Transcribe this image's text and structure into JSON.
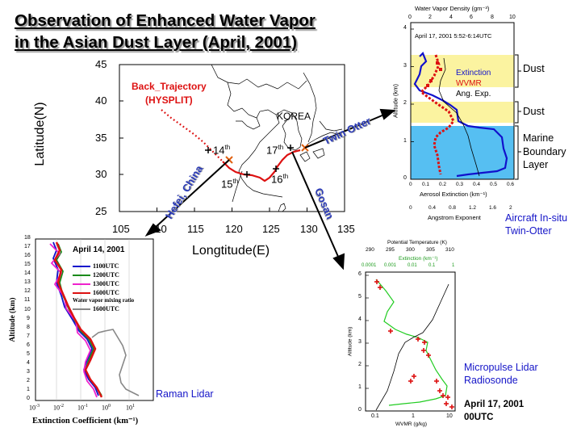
{
  "slide": {
    "title_line1": "Observation of Enhanced Water Vapor",
    "title_line2": "in the Asian Dust Layer (April, 2001)"
  },
  "map": {
    "xlabel": "Longtitude(E)",
    "ylabel": "Latitude(N)",
    "xticks": [
      "105",
      "110",
      "115",
      "120",
      "125",
      "130",
      "135"
    ],
    "yticks": [
      "45",
      "40",
      "35",
      "30",
      "25"
    ],
    "trajectory_label_1": "Back_Trajectory",
    "trajectory_label_2": "(HYSPLIT)",
    "korea_label": "KOREA",
    "sites": {
      "hefei": "Hefei, China",
      "gosan": "Gosan",
      "twin_otter": "Twin Otter"
    },
    "date_labels": [
      {
        "day": "14",
        "suffix": "th"
      },
      {
        "day": "15",
        "suffix": "th"
      },
      {
        "day": "16",
        "suffix": "th"
      },
      {
        "day": "17",
        "suffix": "th"
      }
    ],
    "colors": {
      "trajectory": "#dd1111",
      "site_label": "#2a3ab8",
      "marker": "#e06010"
    }
  },
  "aircraft": {
    "top_axis_title": "Water Vapor Density (gm⁻³)",
    "top_ticks": [
      "0",
      "2",
      "4",
      "6",
      "8",
      "10"
    ],
    "date_text": "April 17, 2001 5:52-6:14UTC",
    "ylabel": "Altitude (km)",
    "yticks": [
      "0",
      "1",
      "2",
      "3",
      "4"
    ],
    "bottom_ticks_1": [
      "0",
      "0.1",
      "0.2",
      "0.3",
      "0.4",
      "0.5",
      "0.6"
    ],
    "bottom_axis_title_1": "Aerosol Extinction (km⁻¹)",
    "bottom_ticks_2": [
      "0",
      "0.4",
      "0.8",
      "1.2",
      "1.6",
      "2"
    ],
    "bottom_axis_title_2": "Angstrom Exponent",
    "legend": [
      {
        "label": "Extinction",
        "color": "#1111cc"
      },
      {
        "label": "WVMR",
        "color": "#dd1111"
      },
      {
        "label": "Ang. Exp.",
        "color": "#000000"
      }
    ],
    "layers": [
      {
        "label": "Dust",
        "range_km": [
          3.0,
          3.6
        ],
        "color": "#fbf3a0"
      },
      {
        "label": "Dust",
        "range_km": [
          1.8,
          2.4
        ],
        "color": "#fbf3a0"
      },
      {
        "label": "Marine Boundary Layer",
        "range_km": [
          0.0,
          1.6
        ],
        "color": "#56bff2"
      }
    ],
    "marine_label_1": "Marine",
    "marine_label_2": "Boundary",
    "marine_label_3": "Layer",
    "caption_line1": "Aircraft In-situ",
    "caption_line2": "Twin-Otter"
  },
  "raman": {
    "date_text": "April 14, 2001",
    "ylabel": "Altitude (km)",
    "yticks": [
      "0",
      "1",
      "2",
      "3",
      "4",
      "5",
      "6",
      "7",
      "8",
      "9",
      "10",
      "11",
      "12",
      "13",
      "14",
      "15",
      "16",
      "17",
      "18"
    ],
    "xlabel": "Extinction Coefficient (km⁻¹)",
    "xtick_exponents": [
      "-3",
      "-2",
      "-1",
      "0",
      "1"
    ],
    "legend": [
      {
        "label": "1100UTC",
        "color": "#1111cc"
      },
      {
        "label": "1200UTC",
        "color": "#1a8a1a"
      },
      {
        "label": "1300UTC",
        "color": "#ee22cc"
      },
      {
        "label": "1600UTC",
        "color": "#dd1111"
      }
    ],
    "wv_legend_title": "Water vapor mixing ratio",
    "wv_legend_label": "1600UTC",
    "caption": "Raman Lidar"
  },
  "mpl": {
    "top_title_1": "Potential Temperature (K)",
    "top_ticks_1": [
      "290",
      "295",
      "300",
      "305",
      "310"
    ],
    "top_title_2": "Extinction (km⁻¹)",
    "top_ticks_2": [
      "0.0001",
      "0.001",
      "0.01",
      "0.1",
      "1"
    ],
    "ylabel": "Altitude (km)",
    "yticks": [
      "0",
      "1",
      "2",
      "3",
      "4",
      "5",
      "6"
    ],
    "xticks": [
      "0.1",
      "1",
      "10"
    ],
    "xlabel": "WVMR (g/kg)",
    "caption_line1": "Micropulse Lidar",
    "caption_line2": "Radiosonde",
    "date_line1": "April 17, 2001",
    "date_line2": "00UTC"
  }
}
